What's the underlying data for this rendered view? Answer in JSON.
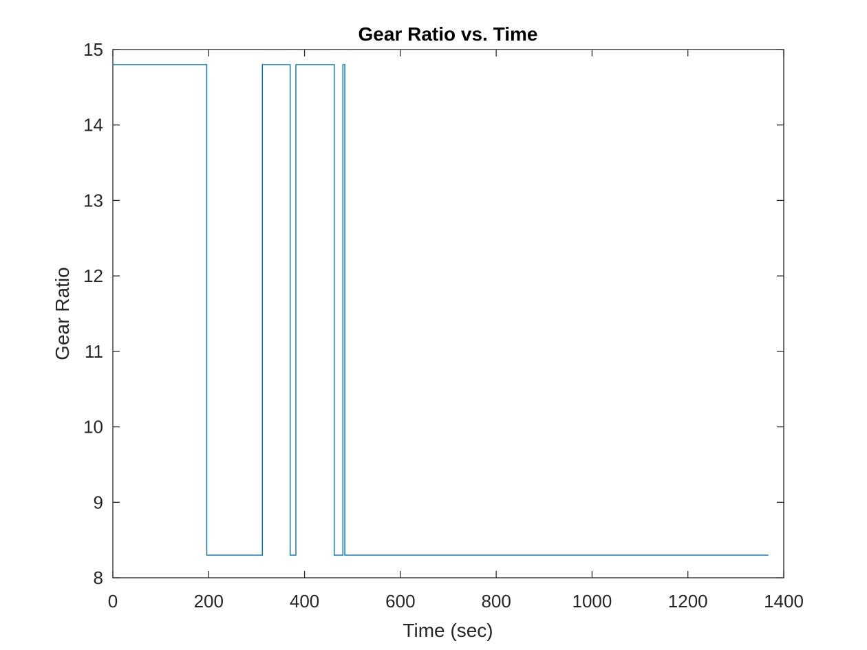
{
  "chart_data": {
    "type": "line",
    "title": "Gear Ratio vs. Time",
    "xlabel": "Time (sec)",
    "ylabel": "Gear Ratio",
    "xlim": [
      0,
      1400
    ],
    "ylim": [
      8,
      15
    ],
    "xticks": [
      0,
      200,
      400,
      600,
      800,
      1000,
      1200,
      1400
    ],
    "yticks": [
      8,
      9,
      10,
      11,
      12,
      13,
      14,
      15
    ],
    "grid": false,
    "line_color": "#0072BD",
    "series": [
      {
        "x": [
          0,
          196,
          196,
          312,
          312,
          370,
          370,
          382,
          382,
          462,
          462,
          480,
          480,
          484,
          484,
          1368
        ],
        "y": [
          14.8,
          14.8,
          8.3,
          8.3,
          14.8,
          14.8,
          8.3,
          8.3,
          14.8,
          14.8,
          8.3,
          8.3,
          14.8,
          14.8,
          8.3,
          8.3
        ]
      }
    ]
  }
}
